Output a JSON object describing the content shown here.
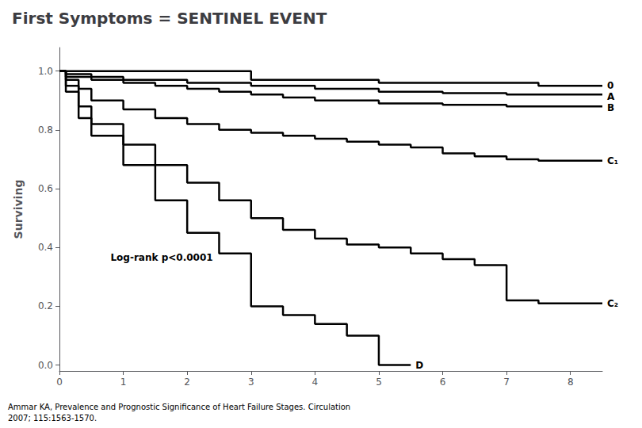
{
  "chart_data": {
    "type": "line",
    "title": "First Symptoms = SENTINEL EVENT",
    "y_label": "Surviving",
    "color": "#000000",
    "grid": false,
    "xlim": [
      0,
      8.5
    ],
    "xticks": [
      0,
      1,
      2,
      3,
      4,
      5,
      6,
      7,
      8
    ],
    "ylim": [
      -0.02,
      1.08
    ],
    "yticks": [
      {
        "value": 0,
        "label": "0.0"
      },
      0.2,
      0.4,
      0.6,
      0.8,
      {
        "value": 1,
        "label": "1.0"
      }
    ],
    "annotations": [
      {
        "text": "Log-rank p<0.0001",
        "x": 0.8,
        "y": 0.35
      }
    ],
    "footnotes": [
      "Ammar KA, Prevalence and Prognostic Significance of Heart Failure Stages. Circulation",
      "2007; 115:1563-1570."
    ],
    "series": [
      {
        "name": "0",
        "x": [
          0,
          3.0,
          3.0,
          5.0,
          5.0,
          7.5,
          7.5,
          8.5
        ],
        "values": [
          1.0,
          1.0,
          0.97,
          0.97,
          0.96,
          0.96,
          0.95,
          0.95
        ]
      },
      {
        "name": "A",
        "x": [
          0,
          0.1,
          0.1,
          0.5,
          0.5,
          1.0,
          1.0,
          2.0,
          2.0,
          3.0,
          3.0,
          4.0,
          4.0,
          5.0,
          5.0,
          6.0,
          6.0,
          7.0,
          7.0,
          8.5
        ],
        "values": [
          1.0,
          1.0,
          0.99,
          0.99,
          0.98,
          0.98,
          0.97,
          0.97,
          0.96,
          0.96,
          0.95,
          0.95,
          0.94,
          0.94,
          0.93,
          0.93,
          0.925,
          0.925,
          0.92,
          0.92
        ]
      },
      {
        "name": "B",
        "x": [
          0,
          0.1,
          0.1,
          0.5,
          0.5,
          1.0,
          1.0,
          1.5,
          1.5,
          2.0,
          2.0,
          2.5,
          2.5,
          3.0,
          3.0,
          3.5,
          3.5,
          4.0,
          4.0,
          5.0,
          5.0,
          6.0,
          6.0,
          7.0,
          7.0,
          8.5
        ],
        "values": [
          1.0,
          1.0,
          0.98,
          0.98,
          0.97,
          0.97,
          0.96,
          0.96,
          0.95,
          0.95,
          0.94,
          0.94,
          0.93,
          0.93,
          0.92,
          0.92,
          0.91,
          0.91,
          0.9,
          0.9,
          0.89,
          0.89,
          0.885,
          0.885,
          0.88,
          0.88
        ]
      },
      {
        "name": "C₁",
        "x": [
          0,
          0.1,
          0.1,
          0.3,
          0.3,
          0.5,
          0.5,
          1.0,
          1.0,
          1.5,
          1.5,
          2.0,
          2.0,
          2.5,
          2.5,
          3.0,
          3.0,
          3.5,
          3.5,
          4.0,
          4.0,
          4.5,
          4.5,
          5.0,
          5.0,
          5.5,
          5.5,
          6.0,
          6.0,
          6.5,
          6.5,
          7.0,
          7.0,
          7.5,
          7.5,
          8.5
        ],
        "values": [
          1.0,
          1.0,
          0.97,
          0.97,
          0.94,
          0.94,
          0.9,
          0.9,
          0.87,
          0.87,
          0.84,
          0.84,
          0.82,
          0.82,
          0.8,
          0.8,
          0.79,
          0.79,
          0.78,
          0.78,
          0.77,
          0.77,
          0.76,
          0.76,
          0.75,
          0.75,
          0.74,
          0.74,
          0.72,
          0.72,
          0.71,
          0.71,
          0.7,
          0.7,
          0.695,
          0.695
        ]
      },
      {
        "name": "C₂",
        "x": [
          0,
          0.1,
          0.1,
          0.3,
          0.3,
          0.5,
          0.5,
          1.0,
          1.0,
          1.5,
          1.5,
          2.0,
          2.0,
          2.5,
          2.5,
          3.0,
          3.0,
          3.5,
          3.5,
          4.0,
          4.0,
          4.5,
          4.5,
          5.0,
          5.0,
          5.5,
          5.5,
          6.0,
          6.0,
          6.5,
          6.5,
          7.0,
          7.0,
          7.5,
          7.5,
          8.5
        ],
        "values": [
          1.0,
          1.0,
          0.95,
          0.95,
          0.88,
          0.88,
          0.82,
          0.82,
          0.75,
          0.75,
          0.68,
          0.68,
          0.62,
          0.62,
          0.56,
          0.56,
          0.5,
          0.5,
          0.46,
          0.46,
          0.43,
          0.43,
          0.41,
          0.41,
          0.4,
          0.4,
          0.38,
          0.38,
          0.36,
          0.36,
          0.34,
          0.34,
          0.22,
          0.22,
          0.21,
          0.21
        ]
      },
      {
        "name": "D",
        "x": [
          0,
          0.1,
          0.1,
          0.3,
          0.3,
          0.5,
          0.5,
          1.0,
          1.0,
          1.5,
          1.5,
          2.0,
          2.0,
          2.5,
          2.5,
          3.0,
          3.0,
          3.5,
          3.5,
          4.0,
          4.0,
          4.5,
          4.5,
          5.0,
          5.0,
          5.5
        ],
        "values": [
          1.0,
          1.0,
          0.93,
          0.93,
          0.84,
          0.84,
          0.78,
          0.78,
          0.68,
          0.68,
          0.56,
          0.56,
          0.45,
          0.45,
          0.38,
          0.38,
          0.2,
          0.2,
          0.17,
          0.17,
          0.14,
          0.14,
          0.1,
          0.1,
          0.0,
          0.0
        ]
      }
    ]
  }
}
